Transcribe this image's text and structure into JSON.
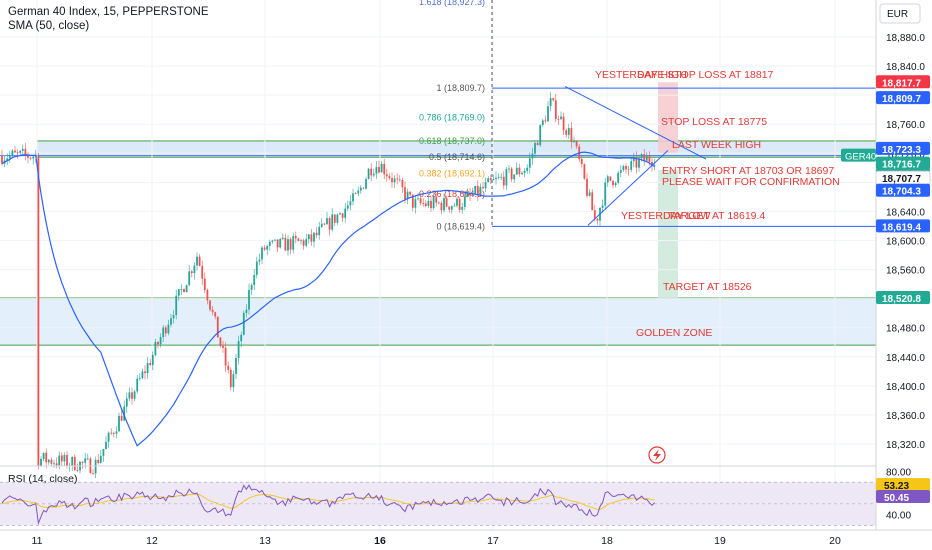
{
  "header": {
    "title": "German 40 Index, 15, PEPPERSTONE",
    "indicator": "SMA (50, close)"
  },
  "currency": "EUR",
  "colors": {
    "up": "#26a69a",
    "down": "#ef5350",
    "sma": "#2962ff",
    "fib": "#4a6fd8",
    "annot": "#e53935",
    "zone_fill": "#e3effb",
    "zone_line": "#43a047",
    "rsi_line": "#7e57c2",
    "rsi_ma": "#f5c518",
    "rsi_band": "#ede7f6"
  },
  "chart_data": [
    {
      "type": "candlestick",
      "title": "German 40 Index, 15, PEPPERSTONE",
      "ylim": [
        18280,
        18950
      ],
      "price_ticks": [
        "18,880.0",
        "18,840.0",
        "18,800.0",
        "18,760.0",
        "18,720.0",
        "18,680.0",
        "18,640.0",
        "18,600.0",
        "18,560.0",
        "18,520.0",
        "18,480.0",
        "18,440.0",
        "18,400.0",
        "18,360.0",
        "18,320.0"
      ],
      "x_ticks": [
        "11",
        "12",
        "13",
        "16",
        "17",
        "18",
        "19",
        "20"
      ],
      "price_tags": [
        {
          "text": "18,817.7",
          "kind": "red"
        },
        {
          "text": "18,809.7",
          "kind": "blue"
        },
        {
          "text": "18,723.3",
          "kind": "blue"
        },
        {
          "text": "18,716.7",
          "kind": "green"
        },
        {
          "text": "12:20",
          "kind": "green-sub"
        },
        {
          "text": "18,707.7",
          "kind": "white"
        },
        {
          "text": "18,704.3",
          "kind": "blue"
        },
        {
          "text": "18,619.4",
          "kind": "blue"
        },
        {
          "text": "18,520.8",
          "kind": "green"
        }
      ],
      "symbol_tag": "GER40",
      "fib_levels": [
        {
          "text": "1.618 (18,927.3)",
          "value": 18927.3
        },
        {
          "text": "1 (18,809.7)",
          "value": 18809.7
        },
        {
          "text": "0.786 (18,769.0)",
          "value": 18769.0
        },
        {
          "text": "0.618 (18,737.0)",
          "value": 18737.0
        },
        {
          "text": "0.5 (18,714.6)",
          "value": 18714.6
        },
        {
          "text": "0.382 (18,692.1)",
          "value": 18692.1
        },
        {
          "text": "0.236 (18,664.3)",
          "value": 18664.3
        },
        {
          "text": "0 (18,619.4)",
          "value": 18619.4
        }
      ],
      "annotations": [
        "YESTERDAY HIGH",
        "SAFE STOP LOSS AT 18817",
        "STOP LOSS AT 18775",
        "LAST WEEK  HIGH",
        "ENTRY SHORT AT 18703 OR 18697",
        "PLEASE WAIT FOR CONFIRMATION",
        "YESTERDAY LOW",
        "TARGET AT 18619.4",
        "TARGET AT 18526",
        "GOLDEN ZONE"
      ],
      "close_path": [
        {
          "x": "11",
          "y": 18300
        },
        {
          "x": "11.5",
          "y": 18290
        },
        {
          "x": "12",
          "y": 18440
        },
        {
          "x": "12.4",
          "y": 18580
        },
        {
          "x": "12.7",
          "y": 18400
        },
        {
          "x": "12.9",
          "y": 18560
        },
        {
          "x": "13",
          "y": 18590
        },
        {
          "x": "13.4",
          "y": 18600
        },
        {
          "x": "13.8",
          "y": 18660
        },
        {
          "x": "15.9",
          "y": 18700
        },
        {
          "x": "16",
          "y": 18705
        },
        {
          "x": "16.3",
          "y": 18650
        },
        {
          "x": "16.7",
          "y": 18650
        },
        {
          "x": "17",
          "y": 18680
        },
        {
          "x": "17.3",
          "y": 18700
        },
        {
          "x": "17.5",
          "y": 18790
        },
        {
          "x": "17.7",
          "y": 18740
        },
        {
          "x": "17.9",
          "y": 18625
        },
        {
          "x": "18",
          "y": 18680
        },
        {
          "x": "18.3",
          "y": 18710
        },
        {
          "x": "18.5",
          "y": 18716.7
        }
      ]
    },
    {
      "type": "line",
      "title": "RSI (14, close)",
      "ylim": [
        35,
        85
      ],
      "ticks": [
        "80.00",
        "40.00"
      ],
      "values_shown": [
        "53.23",
        "50.45"
      ]
    }
  ]
}
